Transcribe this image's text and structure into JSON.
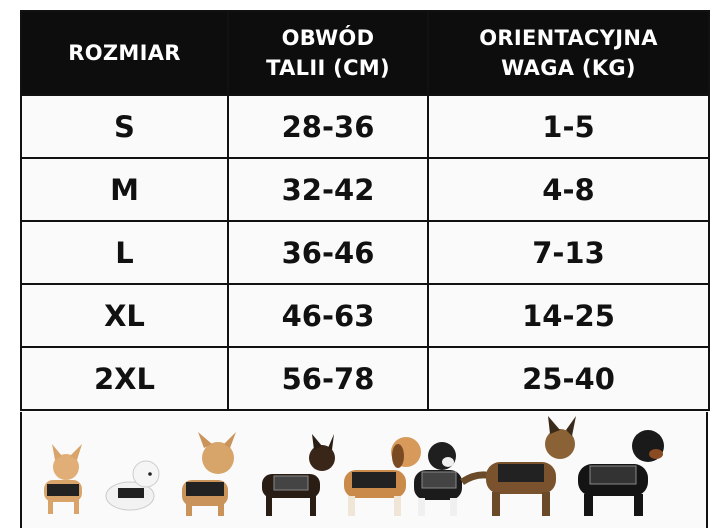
{
  "table": {
    "headers": [
      "ROZMIAR",
      "OBWÓD\nTALII (CM)",
      "ORIENTACYJNA\nWAGA (KG)"
    ],
    "rows": [
      {
        "size": "S",
        "waist": "28-36",
        "weight": "1-5"
      },
      {
        "size": "M",
        "waist": "32-42",
        "weight": "4-8"
      },
      {
        "size": "L",
        "waist": "36-46",
        "weight": "7-13"
      },
      {
        "size": "XL",
        "waist": "46-63",
        "weight": "14-25"
      },
      {
        "size": "2XL",
        "waist": "56-78",
        "weight": "25-40"
      }
    ]
  },
  "colors": {
    "header_bg": "#0d0d0d",
    "header_text": "#ffffff",
    "cell_bg": "#fafafa",
    "border": "#111111"
  },
  "illustration": {
    "icons": [
      "chihuahua-icon",
      "maltese-icon",
      "yorkie-icon",
      "pinscher-icon",
      "beagle-icon",
      "bernese-icon",
      "german-shepherd-icon",
      "rottweiler-icon"
    ]
  }
}
